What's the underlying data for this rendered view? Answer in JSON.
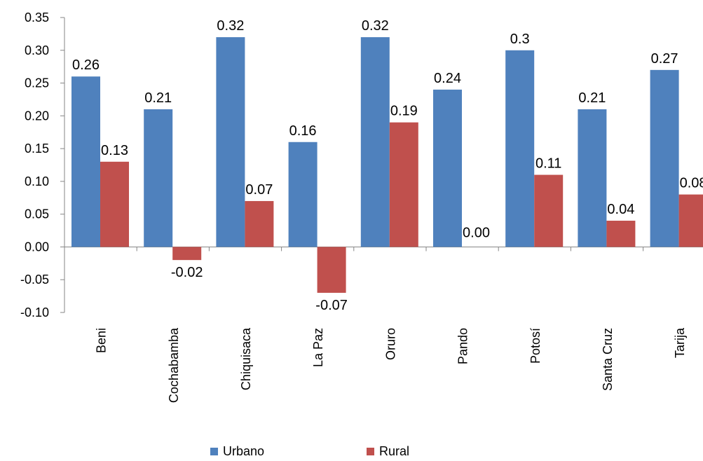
{
  "chart_data": {
    "type": "bar",
    "title": "",
    "xlabel": "",
    "ylabel": "",
    "ylim": [
      -0.1,
      0.35
    ],
    "yticks": [
      "0.35",
      "0.30",
      "0.25",
      "0.20",
      "0.15",
      "0.10",
      "0.05",
      "0.00",
      "-0.05",
      "-0.10"
    ],
    "ytick_values": [
      0.35,
      0.3,
      0.25,
      0.2,
      0.15,
      0.1,
      0.05,
      0.0,
      -0.05,
      -0.1
    ],
    "categories": [
      "Beni",
      "Cochabamba",
      "Chiquisaca",
      "La Paz",
      "Oruro",
      "Pando",
      "Potosí",
      "Santa Cruz",
      "Tarija"
    ],
    "series": [
      {
        "name": "Urbano",
        "color": "#4F81BD",
        "values": [
          0.26,
          0.21,
          0.32,
          0.16,
          0.32,
          0.24,
          0.3,
          0.21,
          0.27
        ],
        "labels": [
          "0.26",
          "0.21",
          "0.32",
          "0.16",
          "0.32",
          "0.24",
          "0.3",
          "0.21",
          "0.27"
        ]
      },
      {
        "name": "Rural",
        "color": "#C0504D",
        "values": [
          0.13,
          -0.02,
          0.07,
          -0.07,
          0.19,
          0.0,
          0.11,
          0.04,
          0.08
        ],
        "labels": [
          "0.13",
          "-0.02",
          "0.07",
          "-0.07",
          "0.19",
          "0.00",
          "0.11",
          "0.04",
          "0.08"
        ]
      }
    ],
    "grid": false,
    "legend_position": "bottom"
  }
}
